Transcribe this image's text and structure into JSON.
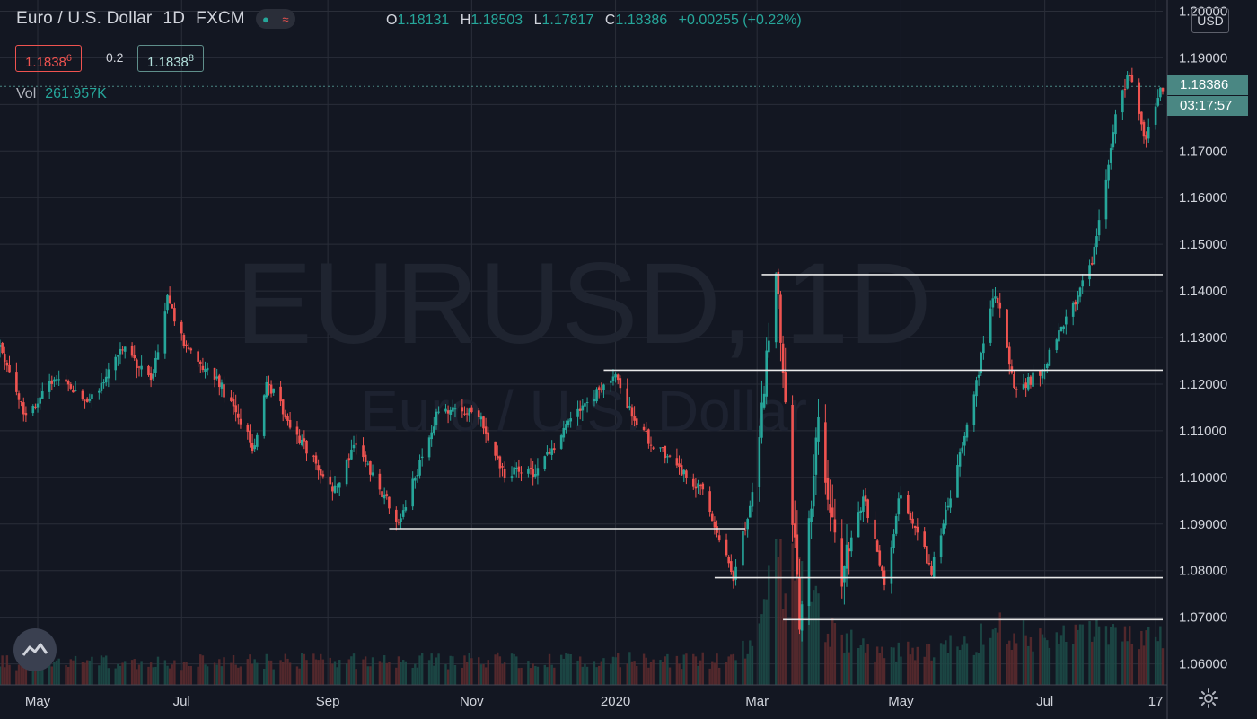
{
  "header": {
    "symbol": "Euro / U.S. Dollar",
    "interval": "1D",
    "exchange": "FXCM",
    "open_label": "O",
    "open": "1.18131",
    "high_label": "H",
    "high": "1.18503",
    "low_label": "L",
    "low": "1.17817",
    "close_label": "C",
    "close": "1.18386",
    "change": "+0.00255 (+0.22%)"
  },
  "trade": {
    "sell_main": "1.1838",
    "sell_pip": "6",
    "spread": "0.2",
    "buy_main": "1.1838",
    "buy_pip": "8"
  },
  "volume": {
    "label": "Vol",
    "value": "261.957K"
  },
  "currency": "USD",
  "last_price": {
    "price": "1.18386",
    "countdown": "03:17:57",
    "value": 1.18386
  },
  "watermark": {
    "big": "EURUSD, 1D",
    "small": "Euro / U.S. Dollar"
  },
  "colors": {
    "background": "#131722",
    "up": "#26a69a",
    "down": "#ef5350",
    "grid": "#2a2e39",
    "level_line": "#e8e8e8",
    "last_price_bg": "#4a8783"
  },
  "icons": {
    "logo": "tradingview-logo-icon",
    "settings": "gear-icon",
    "pill_dot": "dot-icon",
    "pill_wave": "wave-icon"
  },
  "chart_data": {
    "type": "candlestick",
    "y_axis": {
      "ticks": [
        1.06,
        1.07,
        1.08,
        1.09,
        1.1,
        1.11,
        1.12,
        1.13,
        1.14,
        1.15,
        1.16,
        1.17,
        1.18,
        1.19,
        1.2
      ],
      "tick_labels": [
        "1.06000",
        "1.07000",
        "1.08000",
        "1.09000",
        "1.10000",
        "1.11000",
        "1.12000",
        "1.13000",
        "1.14000",
        "1.15000",
        "1.16000",
        "1.17000",
        "",
        "1.19000",
        "1.20000"
      ],
      "range": [
        1.0555,
        1.2024
      ]
    },
    "x_axis": {
      "start": "2019-04-15",
      "end": "2020-08-20",
      "ticks": [
        {
          "date": "2019-05-01",
          "label": "May"
        },
        {
          "date": "2019-07-01",
          "label": "Jul"
        },
        {
          "date": "2019-09-01",
          "label": "Sep"
        },
        {
          "date": "2019-11-01",
          "label": "Nov"
        },
        {
          "date": "2020-01-01",
          "label": "2020"
        },
        {
          "date": "2020-03-01",
          "label": "Mar"
        },
        {
          "date": "2020-05-01",
          "label": "May"
        },
        {
          "date": "2020-07-01",
          "label": "Jul"
        },
        {
          "date": "2020-08-17",
          "label": "17"
        }
      ]
    },
    "close_path": [
      [
        "2019-04-15",
        1.128
      ],
      [
        "2019-04-26",
        1.113
      ],
      [
        "2019-05-10",
        1.122
      ],
      [
        "2019-05-23",
        1.116
      ],
      [
        "2019-06-06",
        1.128
      ],
      [
        "2019-06-18",
        1.12
      ],
      [
        "2019-06-25",
        1.138
      ],
      [
        "2019-07-03",
        1.128
      ],
      [
        "2019-07-16",
        1.121
      ],
      [
        "2019-08-01",
        1.106
      ],
      [
        "2019-08-06",
        1.121
      ],
      [
        "2019-08-19",
        1.109
      ],
      [
        "2019-09-03",
        1.097
      ],
      [
        "2019-09-13",
        1.107
      ],
      [
        "2019-09-26",
        1.095
      ],
      [
        "2019-10-01",
        1.09
      ],
      [
        "2019-10-18",
        1.115
      ],
      [
        "2019-11-04",
        1.113
      ],
      [
        "2019-11-14",
        1.101
      ],
      [
        "2019-11-29",
        1.101
      ],
      [
        "2019-12-13",
        1.112
      ],
      [
        "2019-12-31",
        1.122
      ],
      [
        "2020-01-10",
        1.111
      ],
      [
        "2020-01-29",
        1.101
      ],
      [
        "2020-02-06",
        1.098
      ],
      [
        "2020-02-20",
        1.079
      ],
      [
        "2020-02-28",
        1.096
      ],
      [
        "2020-03-09",
        1.144
      ],
      [
        "2020-03-12",
        1.124
      ],
      [
        "2020-03-19",
        1.069
      ],
      [
        "2020-03-27",
        1.111
      ],
      [
        "2020-04-06",
        1.079
      ],
      [
        "2020-04-15",
        1.096
      ],
      [
        "2020-04-24",
        1.078
      ],
      [
        "2020-05-01",
        1.097
      ],
      [
        "2020-05-14",
        1.08
      ],
      [
        "2020-05-29",
        1.111
      ],
      [
        "2020-06-10",
        1.14
      ],
      [
        "2020-06-19",
        1.118
      ],
      [
        "2020-07-01",
        1.124
      ],
      [
        "2020-07-21",
        1.146
      ],
      [
        "2020-07-31",
        1.177
      ],
      [
        "2020-08-06",
        1.187
      ],
      [
        "2020-08-12",
        1.172
      ],
      [
        "2020-08-20",
        1.184
      ]
    ],
    "horizontal_levels": [
      {
        "price": 1.1435,
        "from": "2020-03-03",
        "to": "2020-08-20"
      },
      {
        "price": 1.123,
        "from": "2019-12-27",
        "to": "2020-08-20"
      },
      {
        "price": 1.089,
        "from": "2019-09-27",
        "to": "2020-02-25"
      },
      {
        "price": 1.0785,
        "from": "2020-02-12",
        "to": "2020-08-20"
      },
      {
        "price": 1.0695,
        "from": "2020-03-12",
        "to": "2020-08-20"
      }
    ],
    "volume_profile": [
      [
        "2019-04-15",
        0.18
      ],
      [
        "2020-02-20",
        0.2
      ],
      [
        "2020-03-01",
        0.45
      ],
      [
        "2020-03-09",
        0.95
      ],
      [
        "2020-03-19",
        0.85
      ],
      [
        "2020-03-31",
        0.45
      ],
      [
        "2020-04-15",
        0.28
      ],
      [
        "2020-05-25",
        0.3
      ],
      [
        "2020-06-10",
        0.45
      ],
      [
        "2020-07-01",
        0.35
      ],
      [
        "2020-07-25",
        0.4
      ],
      [
        "2020-08-20",
        0.38
      ]
    ],
    "volume_range": [
      0,
      1
    ]
  }
}
